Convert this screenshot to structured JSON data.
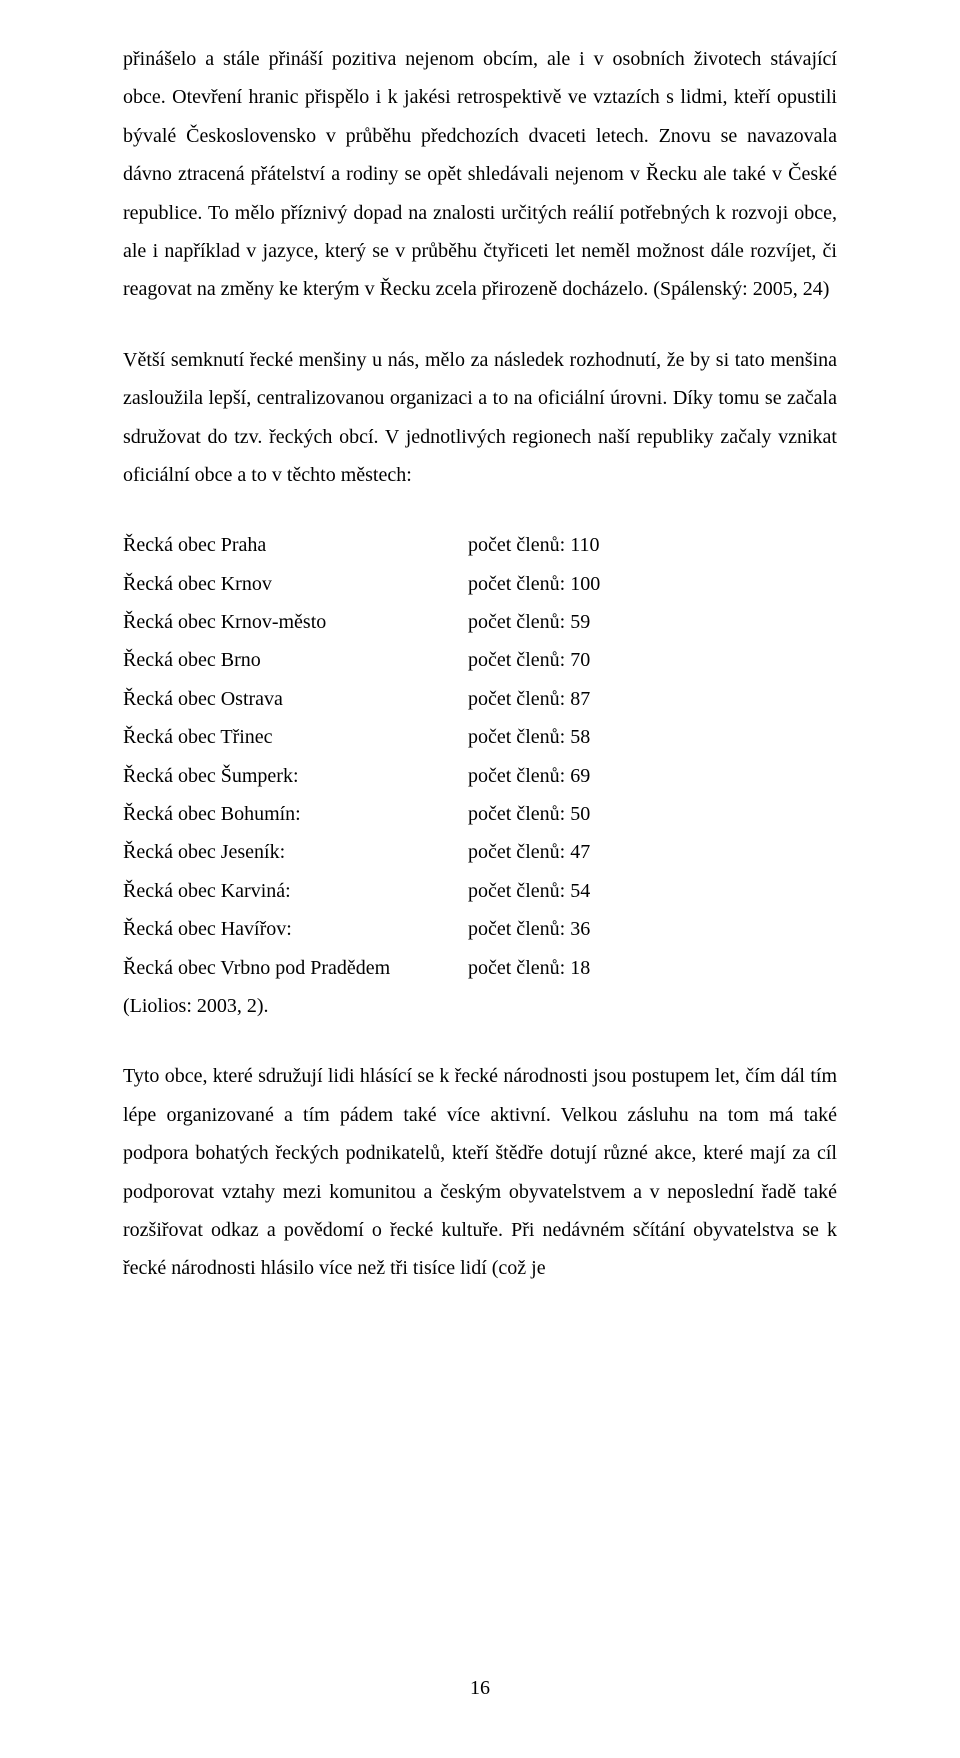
{
  "paragraphs": {
    "p1": "přinášelo a stále přináší pozitiva nejenom obcím, ale i v osobních životech stávající obce. Otevření hranic přispělo i k jakési retrospektivě ve vztazích s lidmi, kteří opustili bývalé Československo v průběhu předchozích dvaceti letech. Znovu se navazovala dávno ztracená přátelství a rodiny se opět shledávali nejenom v Řecku ale také v České republice. To mělo příznivý dopad na znalosti určitých reálií potřebných k rozvoji obce, ale i například v jazyce, který se v průběhu čtyřiceti let neměl možnost dále rozvíjet, či reagovat na změny ke kterým v Řecku zcela přirozeně docházelo. (Spálenský: 2005, 24)",
    "p2": "Větší semknutí řecké menšiny u nás, mělo za následek rozhodnutí, že by si tato menšina zasloužila lepší, centralizovanou organizaci a to na oficiální úrovni. Díky tomu se začala sdružovat do tzv. řeckých obcí. V jednotlivých regionech naší republiky začaly vznikat oficiální obce a to v těchto městech:",
    "p3_citation": "(Liolios: 2003, 2).",
    "p4": "Tyto obce, které sdružují lidi hlásící se k řecké národnosti jsou postupem let, čím dál tím lépe organizované a tím pádem také více aktivní. Velkou zásluhu na tom má také podpora bohatých řeckých podnikatelů, kteří štědře dotují různé akce, které mají za cíl podporovat vztahy mezi komunitou a českým obyvatelstvem a v neposlední řadě také rozšiřovat odkaz a povědomí o řecké kultuře. Při nedávném sčítání obyvatelstva se k řecké národnosti hlásilo více než tři tisíce lidí (což je"
  },
  "members_label": "počet členů: ",
  "obce": [
    {
      "name": "Řecká obec Praha",
      "count": "110"
    },
    {
      "name": "Řecká obec Krnov",
      "count": "100"
    },
    {
      "name": "Řecká obec Krnov-město",
      "count": "59"
    },
    {
      "name": "Řecká obec Brno",
      "count": "70"
    },
    {
      "name": "Řecká obec Ostrava",
      "count": "87"
    },
    {
      "name": "Řecká obec Třinec",
      "count": "58"
    },
    {
      "name": "Řecká obec Šumperk:",
      "count": "69"
    },
    {
      "name": "Řecká obec Bohumín:",
      "count": "50"
    },
    {
      "name": "Řecká obec Jeseník:",
      "count": "47"
    },
    {
      "name": "Řecká obec Karviná:",
      "count": "54"
    },
    {
      "name": "Řecká obec Havířov:",
      "count": "36"
    },
    {
      "name": "Řecká obec Vrbno pod Pradědem",
      "count": "18"
    }
  ],
  "page_number": "16"
}
